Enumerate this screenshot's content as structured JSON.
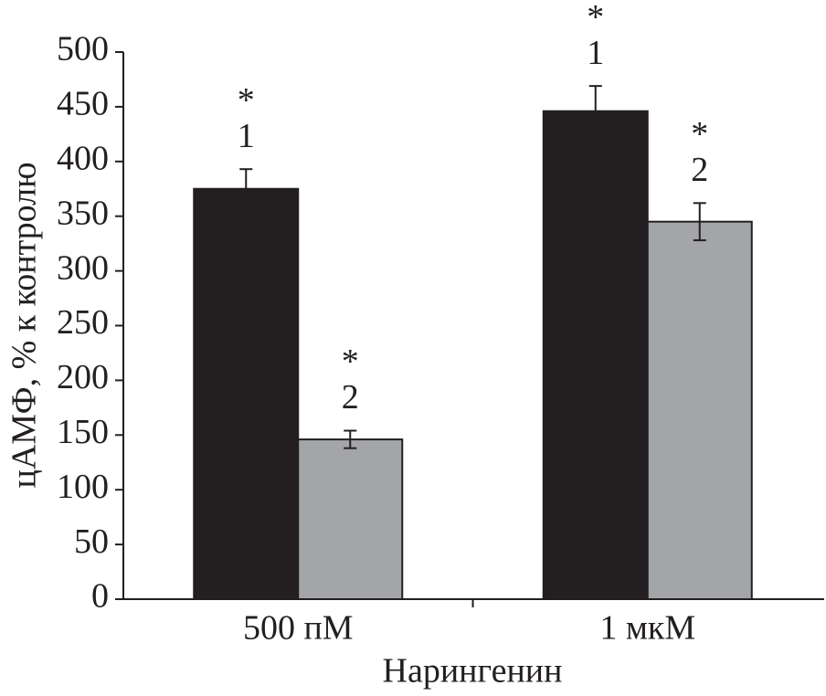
{
  "chart_data": {
    "type": "bar",
    "x_label": "Нарингенин",
    "y_label": "цАМФ, % к контролю",
    "categories": [
      "500 пМ",
      "1 мкМ"
    ],
    "series": [
      {
        "name": "1",
        "color": "#231f20",
        "values": [
          375,
          446
        ],
        "errors": [
          18,
          23
        ]
      },
      {
        "name": "2",
        "color": "#a4a5a8",
        "values": [
          146,
          345
        ],
        "errors": [
          8,
          17
        ]
      }
    ],
    "marker_label": "*",
    "ylim": [
      0,
      500
    ],
    "yticks": [
      0,
      50,
      100,
      150,
      200,
      250,
      300,
      350,
      400,
      450,
      500
    ],
    "grid": false
  }
}
